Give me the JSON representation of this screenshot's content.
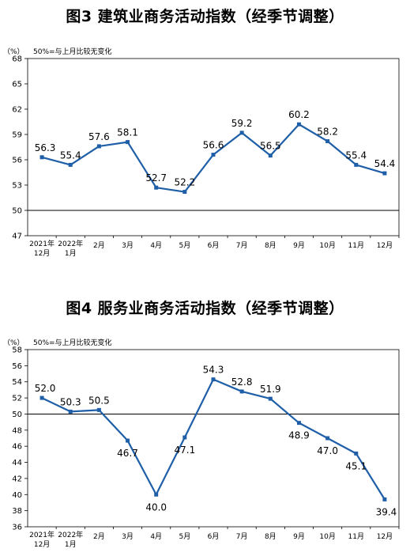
{
  "chart_data": [
    {
      "type": "line",
      "title": "图3  建筑业商务活动指数（经季节调整）",
      "unit": "（%）",
      "note": "50%=与上月比较无变化",
      "categories": [
        [
          "2021年",
          "12月"
        ],
        [
          "2022年",
          "1月"
        ],
        [
          "2月"
        ],
        [
          "3月"
        ],
        [
          "4月"
        ],
        [
          "5月"
        ],
        [
          "6月"
        ],
        [
          "7月"
        ],
        [
          "8月"
        ],
        [
          "9月"
        ],
        [
          "10月"
        ],
        [
          "11月"
        ],
        [
          "12月"
        ]
      ],
      "values": [
        56.3,
        55.4,
        57.6,
        58.1,
        52.7,
        52.2,
        56.6,
        59.2,
        56.5,
        60.2,
        58.2,
        55.4,
        54.4
      ],
      "label_position": [
        "above",
        "above",
        "above",
        "above",
        "above",
        "above",
        "above",
        "above",
        "above",
        "above",
        "above",
        "above",
        "above"
      ],
      "ylim": [
        47,
        68
      ],
      "yticks": [
        47,
        50,
        53,
        56,
        59,
        62,
        65,
        68
      ],
      "reference_line": 50,
      "grid": false,
      "color": "#1f5fa8"
    },
    {
      "type": "line",
      "title": "图4  服务业商务活动指数（经季节调整）",
      "unit": "（%）",
      "note": "50%=与上月比较无变化",
      "categories": [
        [
          "2021年",
          "12月"
        ],
        [
          "2022年",
          "1月"
        ],
        [
          "2月"
        ],
        [
          "3月"
        ],
        [
          "4月"
        ],
        [
          "5月"
        ],
        [
          "6月"
        ],
        [
          "7月"
        ],
        [
          "8月"
        ],
        [
          "9月"
        ],
        [
          "10月"
        ],
        [
          "11月"
        ],
        [
          "12月"
        ]
      ],
      "values": [
        52.0,
        50.3,
        50.5,
        46.7,
        40.0,
        47.1,
        54.3,
        52.8,
        51.9,
        48.9,
        47.0,
        45.1,
        39.4
      ],
      "label_position": [
        "above",
        "above",
        "above",
        "below",
        "below",
        "below",
        "above",
        "above",
        "above",
        "below",
        "below",
        "below",
        "below"
      ],
      "ylim": [
        36,
        58
      ],
      "yticks": [
        36,
        38,
        40,
        42,
        44,
        46,
        48,
        50,
        52,
        54,
        56,
        58
      ],
      "reference_line": 50,
      "grid": false,
      "color": "#1f5fa8"
    }
  ]
}
